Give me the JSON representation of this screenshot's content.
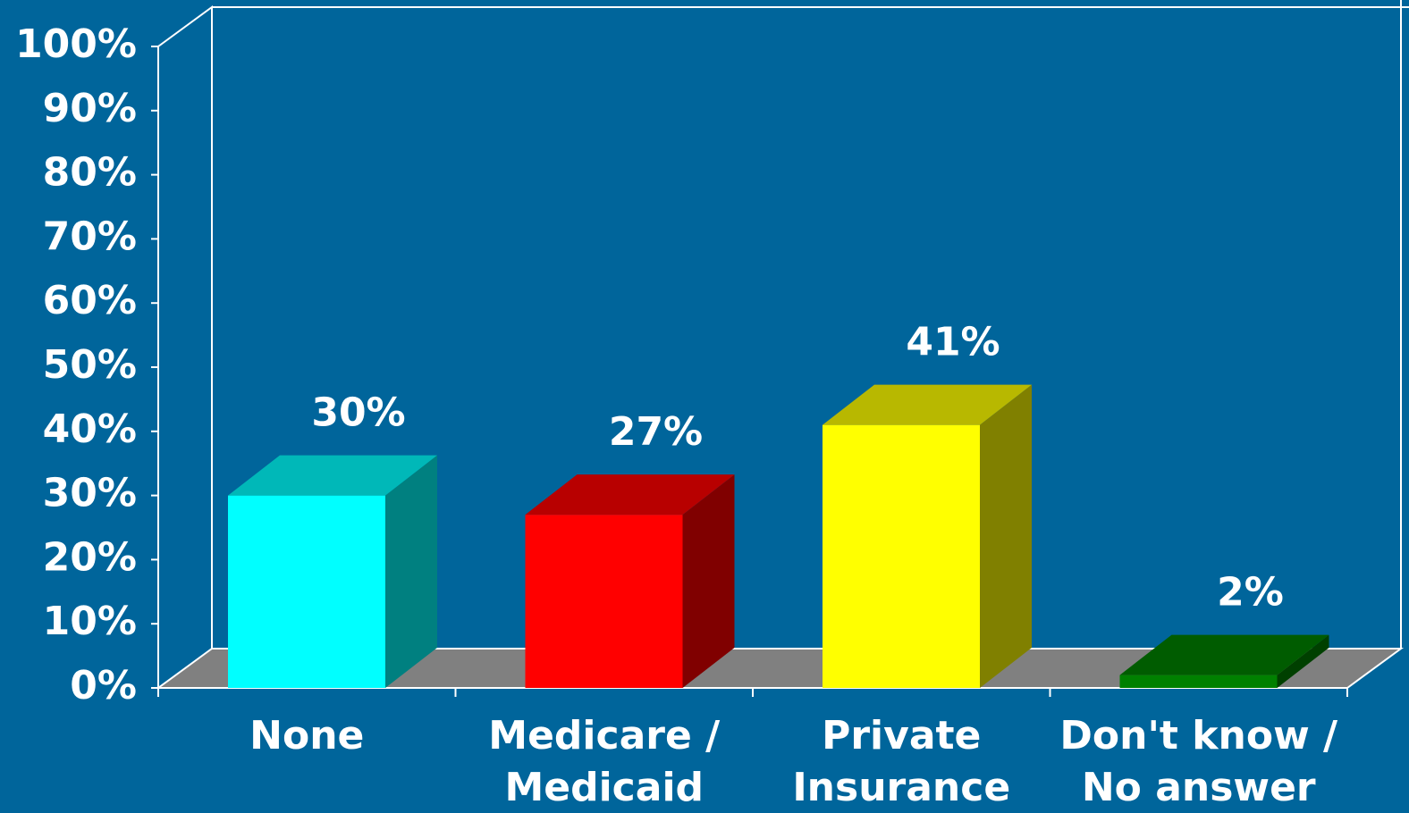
{
  "chart_data": {
    "type": "bar3d",
    "categories": [
      "None",
      "Medicare / Medicaid",
      "Private Insurance",
      "Don't know / No answer"
    ],
    "values": [
      30,
      27,
      41,
      2
    ],
    "value_labels": [
      "30%",
      "27%",
      "41%",
      "2%"
    ],
    "colors": [
      "#00ffff",
      "#ff0000",
      "#ffff00",
      "#008000"
    ],
    "ylim": [
      0,
      100
    ],
    "yticks": [
      {
        "value": 0,
        "label": "0%"
      },
      {
        "value": 10,
        "label": "10%"
      },
      {
        "value": 20,
        "label": "20%"
      },
      {
        "value": 30,
        "label": "30%"
      },
      {
        "value": 40,
        "label": "40%"
      },
      {
        "value": 50,
        "label": "50%"
      },
      {
        "value": 60,
        "label": "60%"
      },
      {
        "value": 70,
        "label": "70%"
      },
      {
        "value": 80,
        "label": "80%"
      },
      {
        "value": 90,
        "label": "90%"
      },
      {
        "value": 100,
        "label": "100%"
      }
    ]
  }
}
